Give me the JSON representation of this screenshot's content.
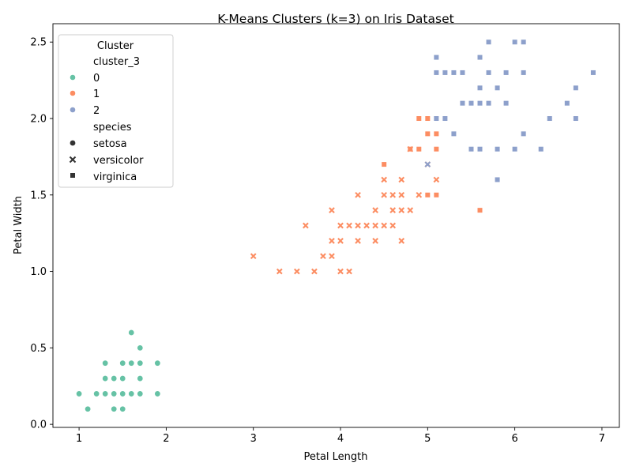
{
  "chart_data": {
    "type": "scatter",
    "title": "K-Means Clusters (k=3) on Iris Dataset",
    "xlabel": "Petal Length",
    "ylabel": "Petal Width",
    "xlim": [
      0.7,
      7.2
    ],
    "ylim": [
      -0.02,
      2.62
    ],
    "xticks": [
      "1",
      "2",
      "3",
      "4",
      "5",
      "6",
      "7"
    ],
    "yticks": [
      "0.0",
      "0.5",
      "1.0",
      "1.5",
      "2.0",
      "2.5"
    ],
    "grid": false,
    "legend": {
      "title": "Cluster",
      "placement": "top-left",
      "hue_title": "cluster_3",
      "hue_entries": [
        {
          "label": "0",
          "color": "#66c2a5"
        },
        {
          "label": "1",
          "color": "#fc8d62"
        },
        {
          "label": "2",
          "color": "#8da0cb"
        }
      ],
      "style_title": "species",
      "style_entries": [
        {
          "label": "setosa",
          "marker": "circle"
        },
        {
          "label": "versicolor",
          "marker": "x"
        },
        {
          "label": "virginica",
          "marker": "square"
        }
      ]
    },
    "colors": {
      "0": "#66c2a5",
      "1": "#fc8d62",
      "2": "#8da0cb"
    },
    "series": [
      {
        "cluster": "0",
        "species": "setosa",
        "points": [
          [
            1.0,
            0.2
          ],
          [
            1.1,
            0.1
          ],
          [
            1.2,
            0.2
          ],
          [
            1.3,
            0.2
          ],
          [
            1.3,
            0.3
          ],
          [
            1.3,
            0.4
          ],
          [
            1.4,
            0.1
          ],
          [
            1.4,
            0.2
          ],
          [
            1.4,
            0.3
          ],
          [
            1.5,
            0.1
          ],
          [
            1.5,
            0.2
          ],
          [
            1.5,
            0.3
          ],
          [
            1.5,
            0.4
          ],
          [
            1.6,
            0.2
          ],
          [
            1.6,
            0.4
          ],
          [
            1.6,
            0.6
          ],
          [
            1.7,
            0.2
          ],
          [
            1.7,
            0.3
          ],
          [
            1.7,
            0.4
          ],
          [
            1.7,
            0.5
          ],
          [
            1.9,
            0.2
          ],
          [
            1.9,
            0.4
          ]
        ]
      },
      {
        "cluster": "1",
        "species": "versicolor",
        "points": [
          [
            3.0,
            1.1
          ],
          [
            3.3,
            1.0
          ],
          [
            3.5,
            1.0
          ],
          [
            3.6,
            1.3
          ],
          [
            3.7,
            1.0
          ],
          [
            3.8,
            1.1
          ],
          [
            3.9,
            1.1
          ],
          [
            3.9,
            1.2
          ],
          [
            3.9,
            1.4
          ],
          [
            4.0,
            1.0
          ],
          [
            4.0,
            1.2
          ],
          [
            4.0,
            1.3
          ],
          [
            4.1,
            1.0
          ],
          [
            4.1,
            1.3
          ],
          [
            4.2,
            1.2
          ],
          [
            4.2,
            1.3
          ],
          [
            4.2,
            1.5
          ],
          [
            4.3,
            1.3
          ],
          [
            4.4,
            1.2
          ],
          [
            4.4,
            1.3
          ],
          [
            4.4,
            1.4
          ],
          [
            4.5,
            1.3
          ],
          [
            4.5,
            1.5
          ],
          [
            4.5,
            1.6
          ],
          [
            4.6,
            1.3
          ],
          [
            4.6,
            1.4
          ],
          [
            4.6,
            1.5
          ],
          [
            4.7,
            1.2
          ],
          [
            4.7,
            1.4
          ],
          [
            4.7,
            1.5
          ],
          [
            4.7,
            1.6
          ],
          [
            4.8,
            1.4
          ],
          [
            4.8,
            1.8
          ],
          [
            4.9,
            1.5
          ],
          [
            5.0,
            1.7
          ],
          [
            5.1,
            1.6
          ]
        ]
      },
      {
        "cluster": "2",
        "species": "versicolor",
        "points": [
          [
            5.0,
            1.7
          ]
        ]
      },
      {
        "cluster": "1",
        "species": "virginica",
        "points": [
          [
            4.5,
            1.7
          ],
          [
            4.8,
            1.8
          ],
          [
            4.9,
            1.8
          ],
          [
            4.9,
            2.0
          ],
          [
            5.0,
            1.5
          ],
          [
            5.0,
            1.9
          ],
          [
            5.0,
            2.0
          ],
          [
            5.1,
            1.5
          ],
          [
            5.1,
            1.8
          ],
          [
            5.1,
            1.9
          ],
          [
            5.6,
            1.4
          ]
        ]
      },
      {
        "cluster": "2",
        "species": "virginica",
        "points": [
          [
            5.1,
            2.0
          ],
          [
            5.1,
            2.3
          ],
          [
            5.1,
            2.4
          ],
          [
            5.2,
            2.0
          ],
          [
            5.2,
            2.3
          ],
          [
            5.3,
            1.9
          ],
          [
            5.3,
            2.3
          ],
          [
            5.4,
            2.1
          ],
          [
            5.4,
            2.3
          ],
          [
            5.5,
            1.8
          ],
          [
            5.5,
            2.1
          ],
          [
            5.6,
            1.8
          ],
          [
            5.6,
            2.1
          ],
          [
            5.6,
            2.2
          ],
          [
            5.6,
            2.4
          ],
          [
            5.7,
            2.1
          ],
          [
            5.7,
            2.3
          ],
          [
            5.7,
            2.5
          ],
          [
            5.8,
            1.6
          ],
          [
            5.8,
            1.8
          ],
          [
            5.8,
            2.2
          ],
          [
            5.9,
            2.1
          ],
          [
            5.9,
            2.3
          ],
          [
            6.0,
            1.8
          ],
          [
            6.0,
            2.5
          ],
          [
            6.1,
            1.9
          ],
          [
            6.1,
            2.3
          ],
          [
            6.1,
            2.5
          ],
          [
            6.3,
            1.8
          ],
          [
            6.4,
            2.0
          ],
          [
            6.6,
            2.1
          ],
          [
            6.7,
            2.0
          ],
          [
            6.7,
            2.2
          ],
          [
            6.9,
            2.3
          ]
        ]
      }
    ]
  }
}
